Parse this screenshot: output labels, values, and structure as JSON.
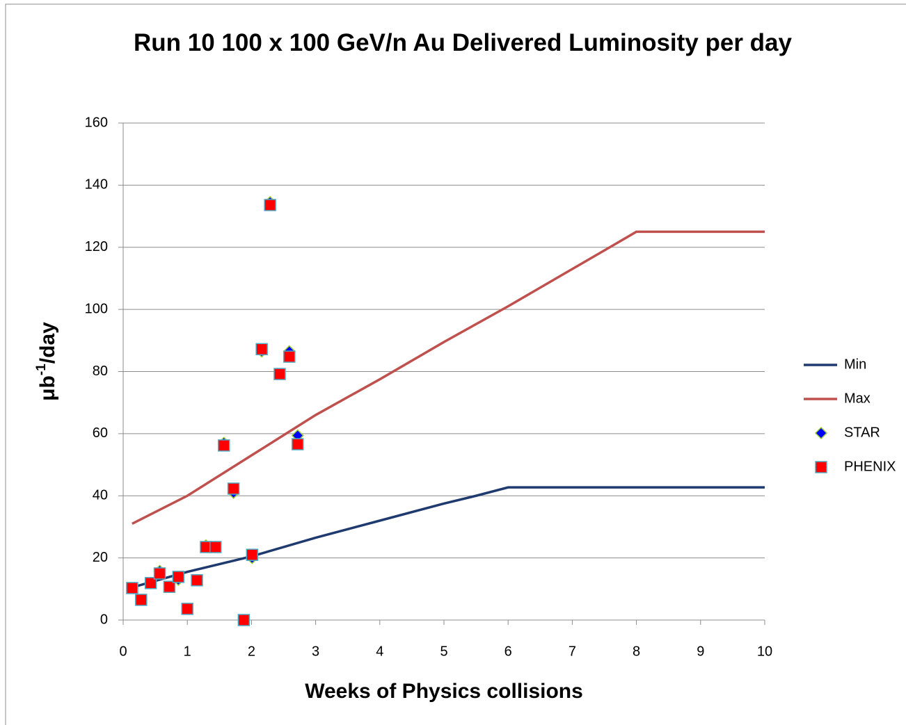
{
  "chart_data": {
    "type": "line",
    "title": "Run 10 100 x 100 GeV/n Au Delivered Luminosity per day",
    "xlabel": "Weeks of Physics collisions",
    "ylabel_parts": [
      "μb",
      "-1",
      "/day"
    ],
    "xlim": [
      0,
      10
    ],
    "xticks": [
      0,
      1,
      2,
      3,
      4,
      5,
      6,
      7,
      8,
      9,
      10
    ],
    "ylim": [
      0,
      160
    ],
    "yticks": [
      0,
      20,
      40,
      60,
      80,
      100,
      120,
      140,
      160
    ],
    "grid": true,
    "legend": "right",
    "series": [
      {
        "name": "Min",
        "color": "#1f3a6e",
        "style": "line",
        "x": [
          0.14,
          1,
          2,
          3,
          4,
          5,
          5.5,
          6,
          10
        ],
        "y": [
          10.5,
          15.5,
          20.5,
          26.5,
          32,
          37.5,
          40,
          42.7,
          42.7
        ]
      },
      {
        "name": "Max",
        "color": "#c0504d",
        "style": "line",
        "x": [
          0.14,
          1,
          2,
          3,
          4,
          5,
          6,
          7,
          8,
          10
        ],
        "y": [
          31,
          40,
          53,
          66,
          77.5,
          89.5,
          101,
          113,
          125,
          125
        ]
      },
      {
        "name": "STAR",
        "color": "#0000ff",
        "edge": "#9acd32",
        "style": "diamond",
        "x": [
          0.14,
          0.28,
          0.43,
          0.57,
          0.72,
          0.86,
          1.0,
          1.15,
          1.29,
          1.44,
          1.57,
          1.72,
          1.88,
          2.01,
          2.16,
          2.29,
          2.44,
          2.59,
          2.72
        ],
        "y": [
          10.3,
          6.5,
          11.9,
          15.8,
          10.7,
          13,
          3.6,
          12.8,
          24,
          23.5,
          57,
          41,
          0,
          20,
          86.5,
          134.5,
          79.2,
          86.5,
          59.4
        ]
      },
      {
        "name": "PHENIX",
        "color": "#ff0000",
        "edge": "#4bacc6",
        "style": "square",
        "x": [
          0.14,
          0.28,
          0.43,
          0.57,
          0.72,
          0.86,
          1.0,
          1.15,
          1.29,
          1.44,
          1.57,
          1.72,
          1.88,
          2.01,
          2.16,
          2.29,
          2.44,
          2.59,
          2.72
        ],
        "y": [
          10.3,
          6.5,
          11.9,
          15.0,
          10.7,
          13.9,
          3.6,
          12.8,
          23.5,
          23.5,
          56.2,
          42.3,
          0,
          21.0,
          87.2,
          133.6,
          79.2,
          84.8,
          56.6
        ]
      }
    ]
  }
}
